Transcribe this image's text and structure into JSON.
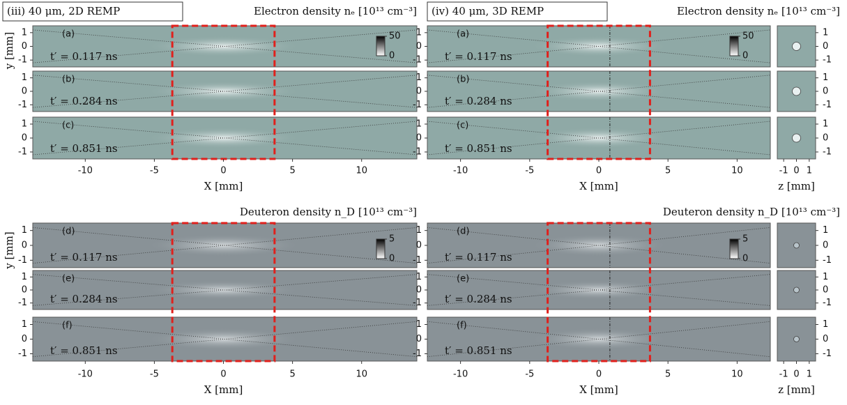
{
  "blocks": [
    {
      "header": "(iii) 40 μm, 2D REMP",
      "electron_title": "Electron density nₑ [10¹³ cm⁻³]",
      "deuteron_title": "Deuteron density n_D [10¹³ cm⁻³]",
      "xlim": [
        -13.8,
        14.0
      ],
      "xticks": [
        -10,
        -5,
        0,
        5,
        10
      ],
      "xlabel": "X [mm]",
      "ylabel": "y [mm]",
      "ylim": [
        -1.5,
        1.5
      ],
      "yticks": [
        -1,
        0,
        1
      ],
      "box": [
        -3.7,
        3.7
      ],
      "panels": [
        {
          "label": "(a)",
          "time": "t′ = 0.117 ns"
        },
        {
          "label": "(b)",
          "time": "t′ = 0.284 ns"
        },
        {
          "label": "(c)",
          "time": "t′ = 0.851 ns"
        },
        {
          "label": "(d)",
          "time": "t′ = 0.117 ns"
        },
        {
          "label": "(e)",
          "time": "t′ = 0.284 ns"
        },
        {
          "label": "(f)",
          "time": "t′ = 0.851 ns"
        }
      ],
      "colorbars": [
        {
          "lim": [
            0,
            50
          ],
          "ticks": [
            0,
            50
          ]
        },
        {
          "lim": [
            0,
            5
          ],
          "ticks": [
            0,
            5
          ]
        }
      ]
    },
    {
      "header": "(iv) 40 μm, 3D REMP",
      "electron_title": "Electron density nₑ [10¹³ cm⁻³]",
      "deuteron_title": "Deuteron density n_D [10¹³ cm⁻³]",
      "xlim": [
        -12.4,
        12.4
      ],
      "xticks": [
        -10,
        -5,
        0,
        5,
        10
      ],
      "xlabel": "X [mm]",
      "ylim": [
        -1.5,
        1.5
      ],
      "yticks": [
        -1,
        0,
        1
      ],
      "box": [
        -3.7,
        3.7
      ],
      "cut": 0.8,
      "panels": [
        {
          "label": "(a)",
          "time": "t′ = 0.117 ns"
        },
        {
          "label": "(b)",
          "time": "t′ = 0.284 ns"
        },
        {
          "label": "(c)",
          "time": "t′ = 0.851 ns"
        },
        {
          "label": "(d)",
          "time": "t′ = 0.117 ns"
        },
        {
          "label": "(e)",
          "time": "t′ = 0.284 ns"
        },
        {
          "label": "(f)",
          "time": "t′ = 0.851 ns"
        }
      ],
      "colorbars": [
        {
          "lim": [
            0,
            50
          ],
          "ticks": [
            0,
            50
          ]
        },
        {
          "lim": [
            0,
            5
          ],
          "ticks": [
            0,
            5
          ]
        }
      ],
      "side": {
        "xlim": [
          -1.5,
          1.5
        ],
        "xticks": [
          -1,
          0,
          1
        ],
        "xlabel": "z [mm]",
        "ylim": [
          -1.5,
          1.5
        ],
        "yticks": [
          -1,
          0,
          1
        ]
      }
    }
  ]
}
